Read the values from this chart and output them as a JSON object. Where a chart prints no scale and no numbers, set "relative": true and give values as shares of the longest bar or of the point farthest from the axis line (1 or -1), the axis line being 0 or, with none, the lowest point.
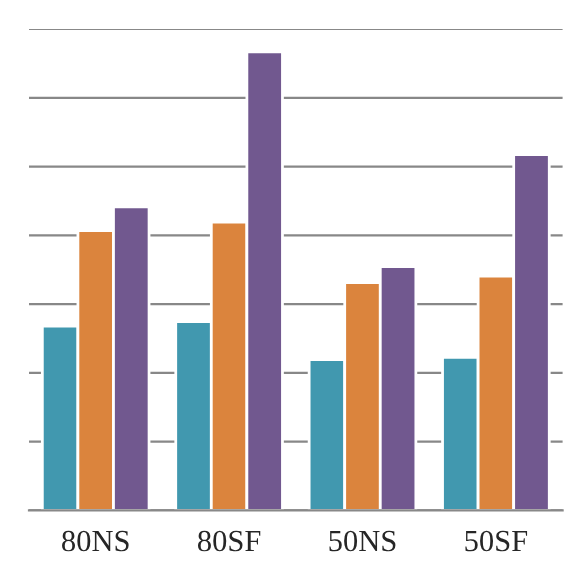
{
  "chart_data": {
    "type": "bar",
    "relative": true,
    "grid": "y",
    "categories": [
      "80NS",
      "80SF",
      "50NS",
      "50SF"
    ],
    "series": [
      {
        "color": "#4198af",
        "values": [
          0.402,
          0.412,
          0.329,
          0.334
        ]
      },
      {
        "color": "#db843d",
        "values": [
          0.61,
          0.629,
          0.497,
          0.511
        ]
      },
      {
        "color": "#71588f",
        "values": [
          0.662,
          1,
          0.532,
          0.776
        ]
      }
    ]
  }
}
